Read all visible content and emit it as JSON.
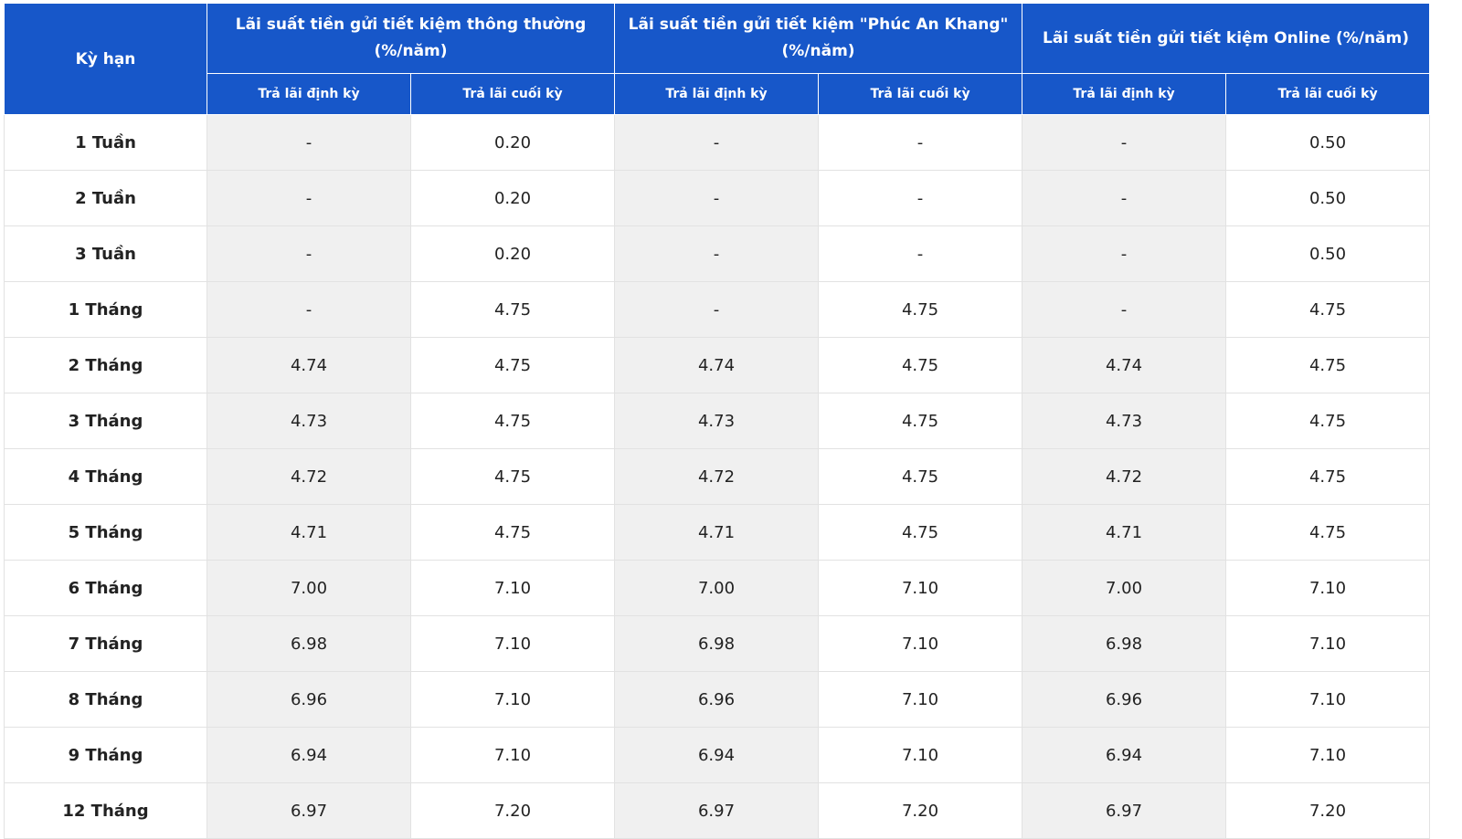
{
  "table": {
    "row_header": "Kỳ hạn",
    "groups": [
      {
        "title": "Lãi suất tiền gửi tiết kiệm thông thường (%/năm)",
        "columns": [
          "Trả lãi định kỳ",
          "Trả lãi cuối kỳ"
        ]
      },
      {
        "title": "Lãi suất tiền gửi tiết kiệm \"Phúc An Khang\" (%/năm)",
        "columns": [
          "Trả lãi định kỳ",
          "Trả lãi cuối kỳ"
        ]
      },
      {
        "title": "Lãi suất tiền gửi tiết kiệm Online (%/năm)",
        "columns": [
          "Trả lãi định kỳ",
          "Trả lãi cuối kỳ"
        ]
      }
    ],
    "rows": [
      [
        "1 Tuần",
        "-",
        "0.20",
        "-",
        "-",
        "-",
        "0.50"
      ],
      [
        "2 Tuần",
        "-",
        "0.20",
        "-",
        "-",
        "-",
        "0.50"
      ],
      [
        "3 Tuần",
        "-",
        "0.20",
        "-",
        "-",
        "-",
        "0.50"
      ],
      [
        "1 Tháng",
        "-",
        "4.75",
        "-",
        "4.75",
        "-",
        "4.75"
      ],
      [
        "2 Tháng",
        "4.74",
        "4.75",
        "4.74",
        "4.75",
        "4.74",
        "4.75"
      ],
      [
        "3 Tháng",
        "4.73",
        "4.75",
        "4.73",
        "4.75",
        "4.73",
        "4.75"
      ],
      [
        "4 Tháng",
        "4.72",
        "4.75",
        "4.72",
        "4.75",
        "4.72",
        "4.75"
      ],
      [
        "5 Tháng",
        "4.71",
        "4.75",
        "4.71",
        "4.75",
        "4.71",
        "4.75"
      ],
      [
        "6 Tháng",
        "7.00",
        "7.10",
        "7.00",
        "7.10",
        "7.00",
        "7.10"
      ],
      [
        "7 Tháng",
        "6.98",
        "7.10",
        "6.98",
        "7.10",
        "6.98",
        "7.10"
      ],
      [
        "8 Tháng",
        "6.96",
        "7.10",
        "6.96",
        "7.10",
        "6.96",
        "7.10"
      ],
      [
        "9 Tháng",
        "6.94",
        "7.10",
        "6.94",
        "7.10",
        "6.94",
        "7.10"
      ],
      [
        "12 Tháng",
        "6.97",
        "7.20",
        "6.97",
        "7.20",
        "6.97",
        "7.20"
      ]
    ]
  }
}
